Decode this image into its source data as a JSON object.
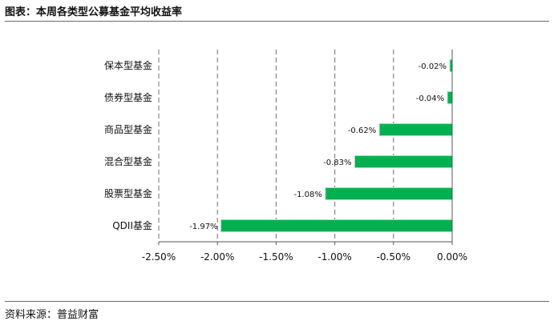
{
  "title": "图表：本周各类型公募基金平均收益率",
  "source": "资料来源：普益财富",
  "colors": {
    "bar": "#00b050",
    "bar_edge": "#9be3b8",
    "grid": "#6e6e6e",
    "axis": "#555555"
  },
  "chart_data": {
    "type": "bar",
    "orientation": "horizontal",
    "categories": [
      "保本型基金",
      "债券型基金",
      "商品型基金",
      "混合型基金",
      "股票型基金",
      "QDII基金"
    ],
    "values": [
      -0.02,
      -0.04,
      -0.62,
      -0.83,
      -1.08,
      -1.97
    ],
    "data_labels": [
      "-0.02%",
      "-0.04%",
      "-0.62%",
      "-0.83%",
      "-1.08%",
      "-1.97%"
    ],
    "xlim": [
      -2.5,
      0
    ],
    "xticks": [
      -2.5,
      -2.0,
      -1.5,
      -1.0,
      -0.5,
      0.0
    ],
    "xtick_labels": [
      "-2.50%",
      "-2.00%",
      "-1.50%",
      "-1.00%",
      "-0.50%",
      "0.00%"
    ],
    "grid": "vertical-dashed",
    "legend": "none"
  }
}
